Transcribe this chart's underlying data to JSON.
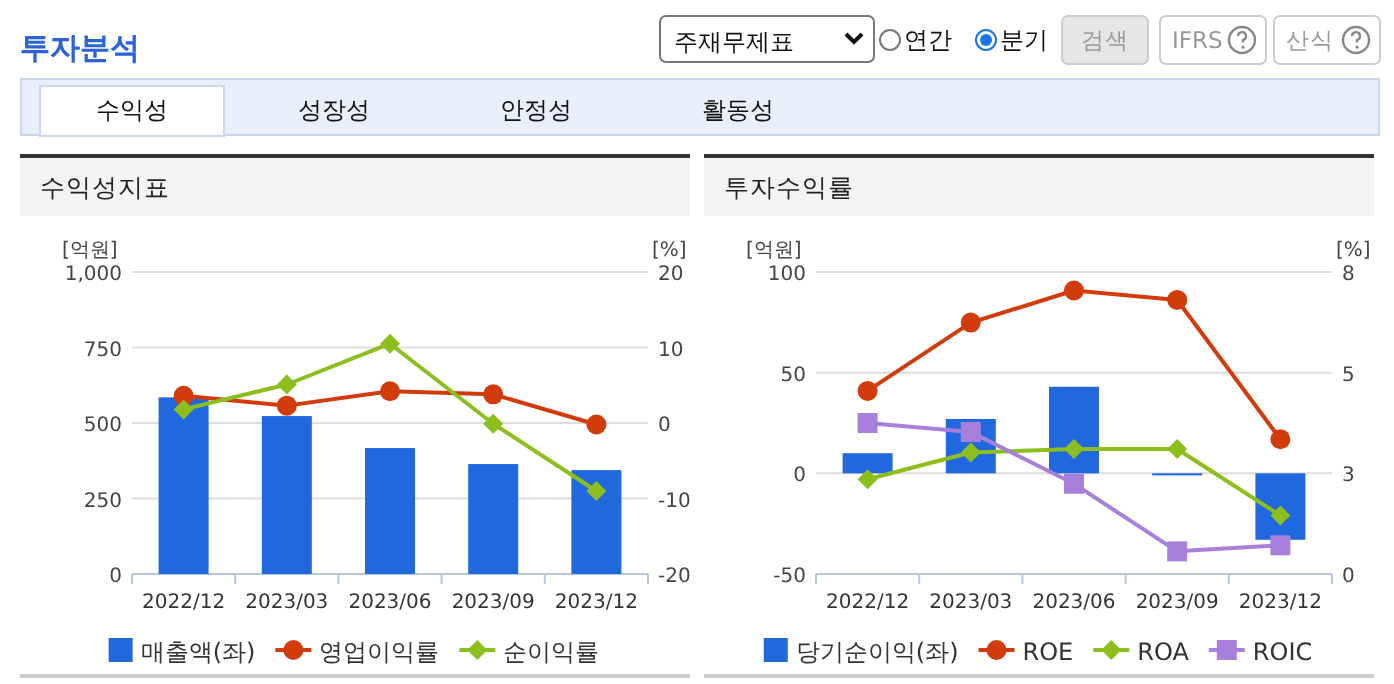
{
  "chart_data": [
    {
      "type": "other",
      "title": "투자분석",
      "annotations": [
        "주재무제표",
        "연간",
        "분기",
        "검색",
        "IFRS",
        "산식",
        "수익성",
        "성장성",
        "안정성",
        "활동성"
      ]
    },
    {
      "type": "bar",
      "title": "수익성지표",
      "ylabel": "[억원]",
      "y2label": "[%]",
      "categories": [
        "2022/12",
        "2023/03",
        "2023/06",
        "2023/09",
        "2023/12"
      ],
      "ylim": [
        0,
        1000
      ],
      "yticks": [
        0,
        250,
        500,
        750,
        {
          "value": 1000,
          "label": "1,000"
        }
      ],
      "y2lim": [
        -20,
        20
      ],
      "y2ticks": [
        -20,
        -10,
        0,
        10,
        20
      ],
      "grid": "y",
      "legend": "bottom",
      "series": [
        {
          "name": "매출액(좌)",
          "type": "bar",
          "color": "#2168de",
          "values": [
            585,
            523,
            417,
            364,
            344
          ]
        },
        {
          "name": "영업이익률",
          "type": "line",
          "axis": "y2",
          "marker": "circle",
          "color": "#d23c0c",
          "values": [
            3.6,
            2.3,
            4.2,
            3.8,
            -0.2
          ]
        },
        {
          "name": "순이익률",
          "type": "line",
          "axis": "y2",
          "marker": "diamond",
          "color": "#8cbf1e",
          "values": [
            1.8,
            5.1,
            10.5,
            -0.1,
            -9.0
          ]
        }
      ]
    },
    {
      "type": "bar",
      "title": "투자수익률",
      "ylabel": "[억원]",
      "y2label": "[%]",
      "categories": [
        "2022/12",
        "2023/03",
        "2023/06",
        "2023/09",
        "2023/12"
      ],
      "ylim": [
        -50,
        100
      ],
      "yticks": [
        -50,
        0,
        50,
        100
      ],
      "y2lim": [
        0,
        8
      ],
      "y2ticks": [
        0,
        {
          "value": 2.667,
          "label": "3"
        },
        {
          "value": 5.333,
          "label": "5"
        },
        8
      ],
      "grid": "y",
      "legend": "bottom",
      "series": [
        {
          "name": "당기순이익(좌)",
          "type": "bar",
          "color": "#2168de",
          "values": [
            10,
            27,
            43,
            -1,
            -33
          ]
        },
        {
          "name": "ROE",
          "type": "line",
          "axis": "y2",
          "marker": "circle",
          "color": "#d23c0c",
          "values": [
            4.85,
            6.66,
            7.51,
            7.26,
            3.57
          ]
        },
        {
          "name": "ROA",
          "type": "line",
          "axis": "y2",
          "marker": "diamond",
          "color": "#8cbf1e",
          "values": [
            2.51,
            3.22,
            3.31,
            3.31,
            1.55
          ]
        },
        {
          "name": "ROIC",
          "type": "line",
          "axis": "y2",
          "marker": "square",
          "color": "#a880dc",
          "values": [
            4.0,
            3.76,
            2.39,
            0.6,
            0.76
          ]
        }
      ]
    }
  ]
}
